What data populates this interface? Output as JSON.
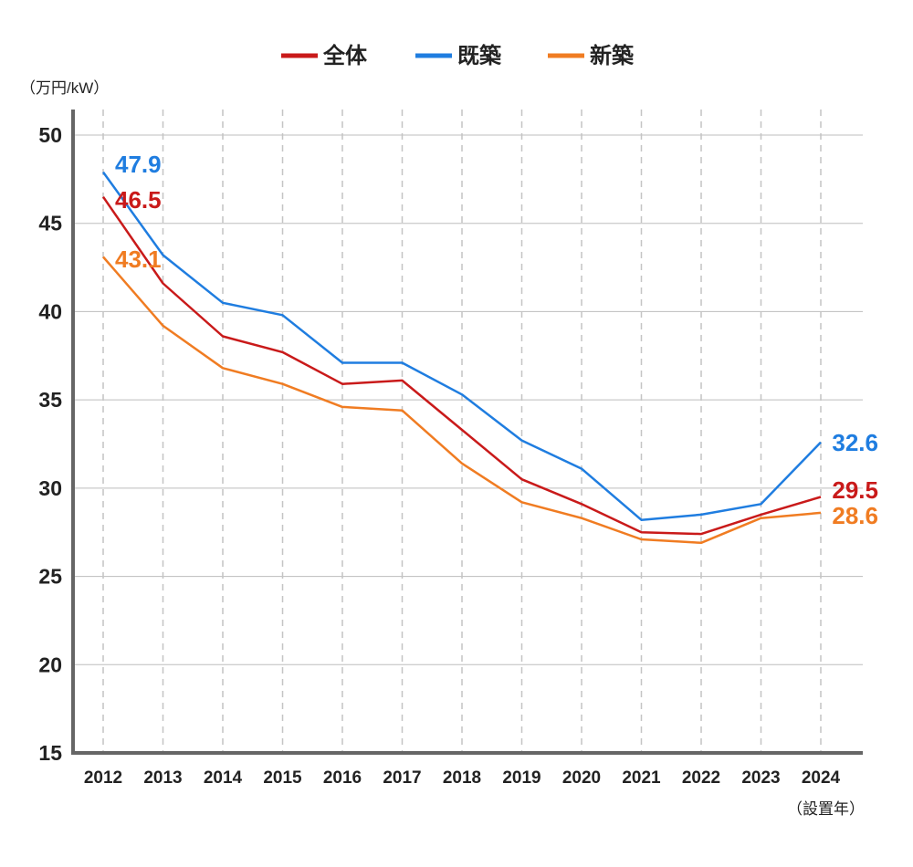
{
  "chart_data": {
    "type": "line",
    "title": "",
    "ylabel": "（万円/kW）",
    "xlabel": "（設置年）",
    "ylim": [
      15,
      50
    ],
    "yticks": [
      15,
      20,
      25,
      30,
      35,
      40,
      45,
      50
    ],
    "categories": [
      "2012",
      "2013",
      "2014",
      "2015",
      "2016",
      "2017",
      "2018",
      "2019",
      "2020",
      "2021",
      "2022",
      "2023",
      "2024"
    ],
    "grid": true,
    "legend_position": "top-center",
    "series": [
      {
        "key": "total",
        "name": "全体",
        "color": "#c91a1a",
        "values": [
          46.5,
          41.6,
          38.6,
          37.7,
          35.9,
          36.1,
          33.3,
          30.5,
          29.1,
          27.5,
          27.4,
          28.5,
          29.5
        ],
        "labels": [
          {
            "index": 0,
            "text": "46.5"
          },
          {
            "index": 12,
            "text": "29.5"
          }
        ]
      },
      {
        "key": "existing",
        "name": "既築",
        "color": "#1f7de0",
        "values": [
          47.9,
          43.2,
          40.5,
          39.8,
          37.1,
          37.1,
          35.3,
          32.7,
          31.1,
          28.2,
          28.5,
          29.1,
          32.6
        ],
        "labels": [
          {
            "index": 0,
            "text": "47.9"
          },
          {
            "index": 12,
            "text": "32.6"
          }
        ]
      },
      {
        "key": "new",
        "name": "新築",
        "color": "#f07c22",
        "values": [
          43.1,
          39.2,
          36.8,
          35.9,
          34.6,
          34.4,
          31.4,
          29.2,
          28.3,
          27.1,
          26.9,
          28.3,
          28.6
        ],
        "labels": [
          {
            "index": 0,
            "text": "43.1"
          },
          {
            "index": 12,
            "text": "28.6"
          }
        ]
      }
    ]
  }
}
